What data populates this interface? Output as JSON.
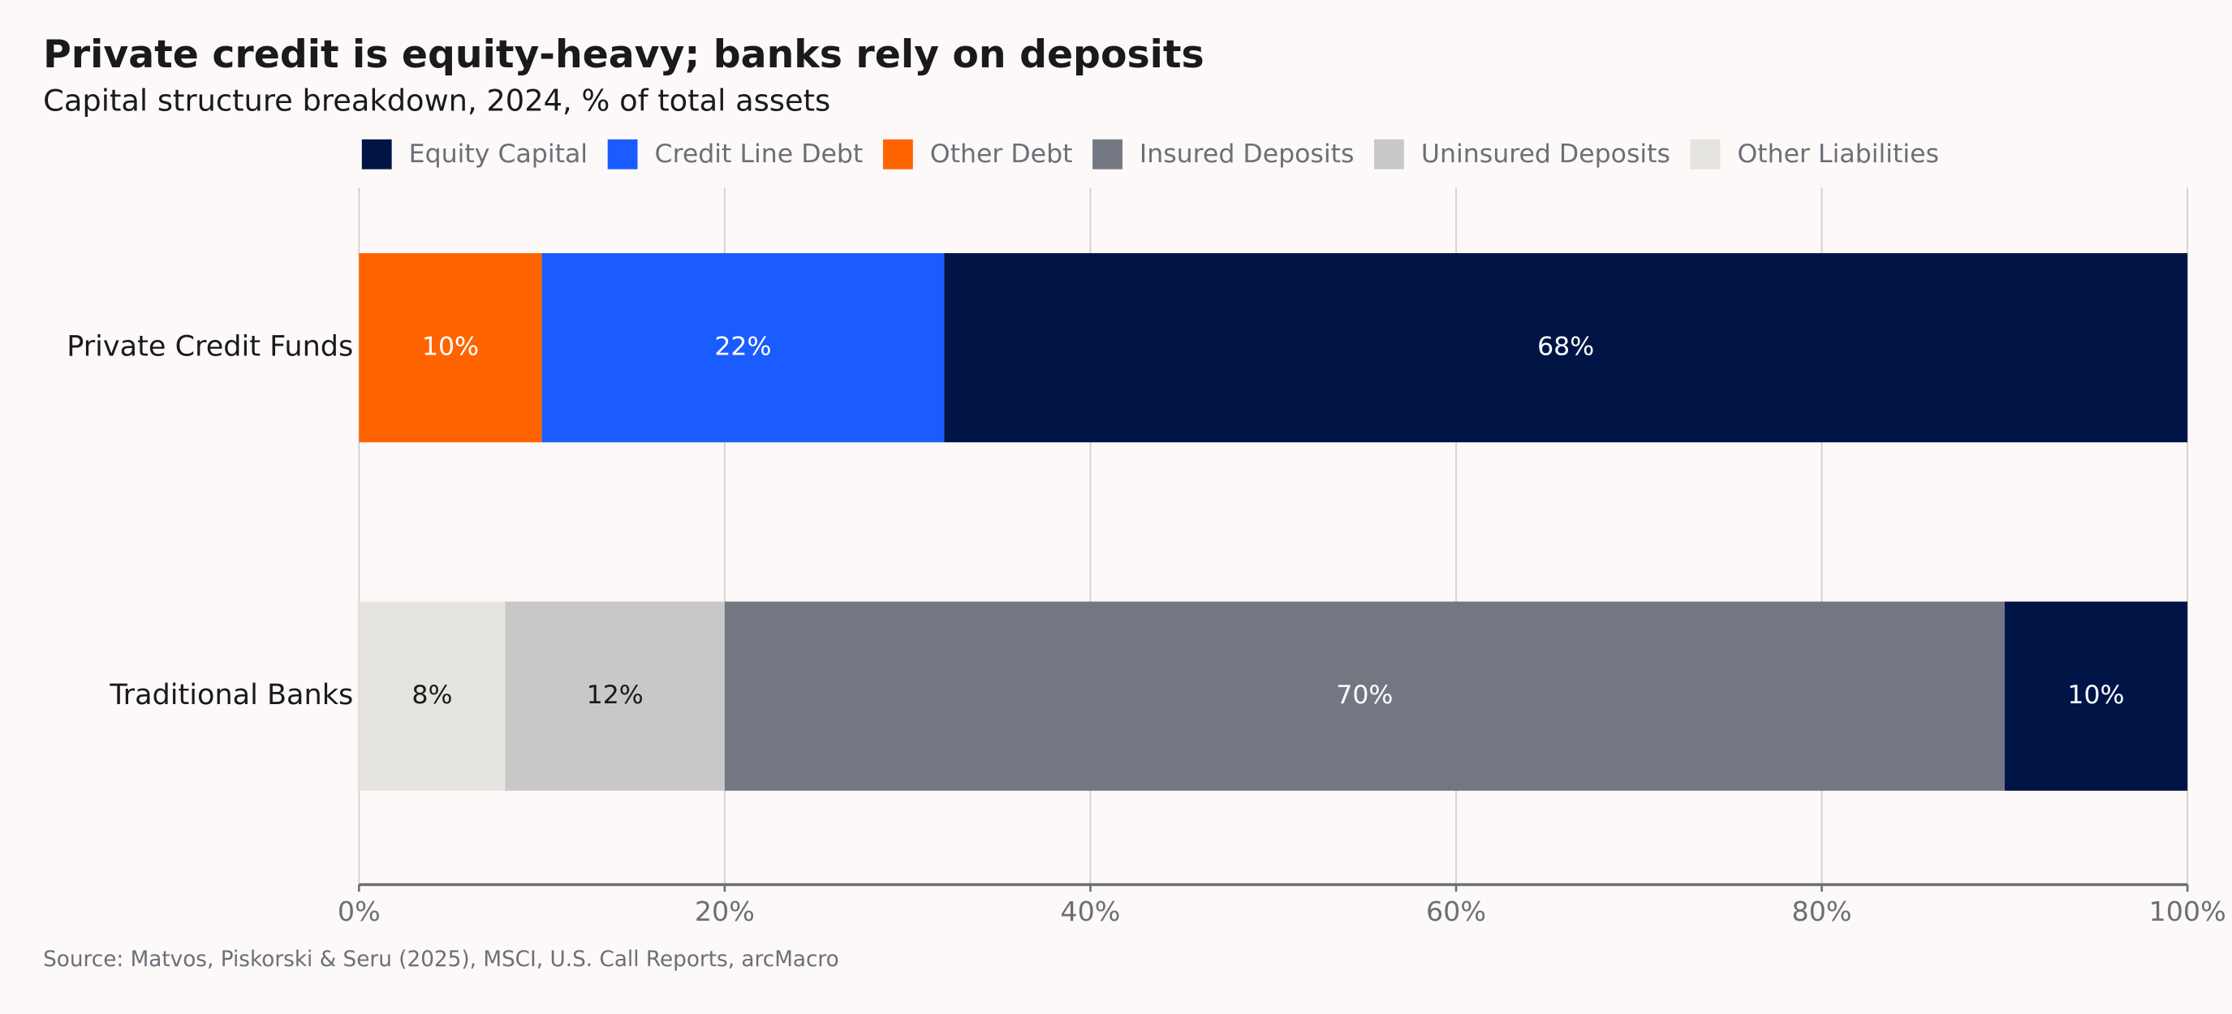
{
  "chart_data": {
    "type": "stacked-barh",
    "title": "Private credit is equity-heavy; banks rely on deposits",
    "subtitle": "Capital structure breakdown, 2024, % of total assets",
    "source": "Source: Matvos, Piskorski & Seru (2025), MSCI, U.S. Call Reports, arcMacro",
    "categories": [
      "Private Credit Funds",
      "Traditional Banks"
    ],
    "series": [
      {
        "name": "Equity Capital",
        "color": "#001446",
        "values": [
          68,
          10
        ],
        "value_labels": [
          "68%",
          "10%"
        ]
      },
      {
        "name": "Credit Line Debt",
        "color": "#1a5cff",
        "values": [
          22,
          null
        ],
        "value_labels": [
          "22%",
          null
        ]
      },
      {
        "name": "Other Debt",
        "color": "#ff6400",
        "values": [
          10,
          null
        ],
        "value_labels": [
          "10%",
          null
        ]
      },
      {
        "name": "Insured Deposits",
        "color": "#737782",
        "values": [
          null,
          70
        ],
        "value_labels": [
          null,
          "70%"
        ]
      },
      {
        "name": "Uninsured Deposits",
        "color": "#c8c8c8",
        "values": [
          null,
          12
        ],
        "value_labels": [
          null,
          "12%"
        ]
      },
      {
        "name": "Other Liabilities",
        "color": "#e6e4e0",
        "values": [
          null,
          8
        ],
        "value_labels": [
          null,
          "8%"
        ]
      }
    ],
    "xlim": [
      0,
      100
    ],
    "xticks": [
      {
        "value": 0,
        "label": "0%"
      },
      {
        "value": 20,
        "label": "20%"
      },
      {
        "value": 40,
        "label": "40%"
      },
      {
        "value": 60,
        "label": "60%"
      },
      {
        "value": 80,
        "label": "80%"
      },
      {
        "value": 100,
        "label": "100%"
      }
    ],
    "grid": true,
    "legend": "top"
  }
}
